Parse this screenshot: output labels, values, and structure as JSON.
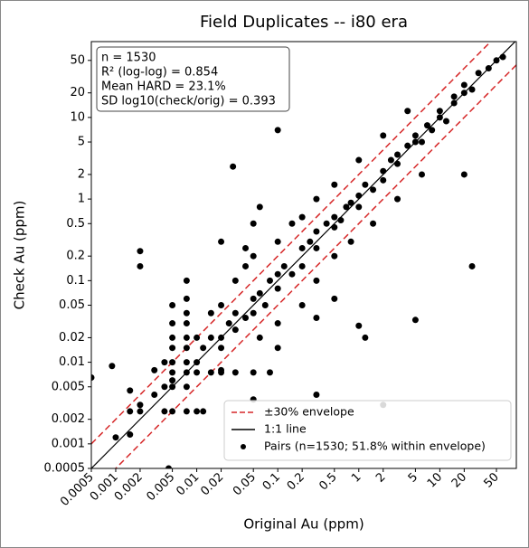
{
  "chart_data": {
    "type": "scatter",
    "title": "Field Duplicates -- i80 era",
    "x_label": "Original Au (ppm)",
    "y_label": "Check Au (ppm)",
    "log_x": true,
    "log_y": true,
    "xlim": [
      0.0005,
      88
    ],
    "ylim": [
      0.0005,
      85
    ],
    "xticks": [
      0.0005,
      0.001,
      0.002,
      0.005,
      0.01,
      0.02,
      0.05,
      0.1,
      0.2,
      0.5,
      1,
      2,
      5,
      10,
      20,
      50
    ],
    "yticks": [
      0.0005,
      0.001,
      0.002,
      0.005,
      0.01,
      0.02,
      0.05,
      0.1,
      0.2,
      0.5,
      1,
      2,
      5,
      10,
      20,
      50
    ],
    "stats": [
      "n = 1530",
      "R² (log-log) = 0.854",
      "Mean HARD = 23.1%",
      "SD log10(check/orig) = 0.393"
    ],
    "legend_position": "lower right",
    "lines": [
      {
        "name": "±30% envelope",
        "color": "#d62728",
        "style": "dashed",
        "envelope_factor": 2
      },
      {
        "name": "1:1 line",
        "color": "#000000",
        "style": "solid"
      }
    ],
    "series": [
      {
        "name": "Pairs (n=1530; 51.8% within envelope)",
        "color": "#000000",
        "x": [
          0.001,
          0.0015,
          0.0015,
          0.002,
          0.003,
          0.003,
          0.004,
          0.004,
          0.005,
          0.005,
          0.005,
          0.005,
          0.005,
          0.005,
          0.005,
          0.005,
          0.0075,
          0.0075,
          0.0075,
          0.0075,
          0.0075,
          0.0075,
          0.0075,
          0.0075,
          0.0075,
          0.0075,
          0.005,
          0.004,
          0.01,
          0.012,
          0.01,
          0.015,
          0.02,
          0.03,
          0.05,
          0.08,
          0.01,
          0.012,
          0.015,
          0.02,
          0.02,
          0.025,
          0.03,
          0.03,
          0.04,
          0.05,
          0.05,
          0.06,
          0.07,
          0.08,
          0.1,
          0.1,
          0.12,
          0.15,
          0.2,
          0.2,
          0.25,
          0.3,
          0.3,
          0.4,
          0.5,
          0.5,
          0.6,
          0.7,
          0.8,
          1,
          1,
          1.2,
          1.5,
          2,
          2,
          2.5,
          3,
          3,
          4,
          5,
          5,
          6,
          7,
          8,
          10,
          10,
          12,
          15,
          15,
          20,
          20,
          25,
          30,
          40,
          50,
          60,
          0.01,
          0.015,
          0.02,
          0.02,
          0.03,
          0.04,
          0.05,
          0.06,
          0.1,
          0.1,
          0.15,
          0.2,
          0.2,
          0.3,
          0.3,
          0.5,
          0.5,
          0.8,
          1,
          1.5,
          2,
          3,
          4,
          6,
          0.1,
          0.028,
          0.002,
          0.002,
          0.05,
          0.0005,
          0.0009,
          20,
          25,
          2,
          5,
          1,
          1.2,
          0.3,
          0.06,
          0.05,
          0.02,
          0.04,
          0.1,
          0.3,
          0.5,
          0.0045,
          0.0015,
          0.002
        ],
        "values": [
          0.0012,
          0.0013,
          0.0045,
          0.0025,
          0.004,
          0.008,
          0.005,
          0.01,
          0.005,
          0.0075,
          0.01,
          0.015,
          0.02,
          0.03,
          0.05,
          0.006,
          0.0075,
          0.01,
          0.015,
          0.02,
          0.03,
          0.005,
          0.04,
          0.06,
          0.1,
          0.0025,
          0.0025,
          0.0025,
          0.0025,
          0.0025,
          0.0075,
          0.0075,
          0.0075,
          0.0075,
          0.0075,
          0.0075,
          0.01,
          0.015,
          0.02,
          0.02,
          0.015,
          0.03,
          0.025,
          0.04,
          0.035,
          0.06,
          0.04,
          0.07,
          0.05,
          0.1,
          0.08,
          0.12,
          0.15,
          0.12,
          0.25,
          0.15,
          0.3,
          0.25,
          0.4,
          0.5,
          0.45,
          0.6,
          0.55,
          0.8,
          0.9,
          1.1,
          0.8,
          1.5,
          1.3,
          2.2,
          1.7,
          3,
          2.7,
          3.5,
          4.5,
          5,
          6,
          5,
          8,
          7,
          10,
          12,
          9,
          15,
          18,
          20,
          25,
          22,
          35,
          40,
          50,
          55,
          0.02,
          0.04,
          0.05,
          0.008,
          0.1,
          0.15,
          0.2,
          0.02,
          0.03,
          0.3,
          0.5,
          0.05,
          0.6,
          0.1,
          1,
          0.2,
          1.5,
          0.3,
          3,
          0.5,
          6,
          1,
          12,
          2,
          7,
          2.5,
          0.23,
          0.15,
          0.0035,
          0.0065,
          0.009,
          2,
          0.15,
          0.003,
          0.033,
          0.028,
          0.02,
          0.004,
          0.8,
          0.5,
          0.3,
          0.25,
          0.015,
          0.035,
          0.06,
          0.0005,
          0.0025,
          0.003
        ]
      }
    ]
  }
}
